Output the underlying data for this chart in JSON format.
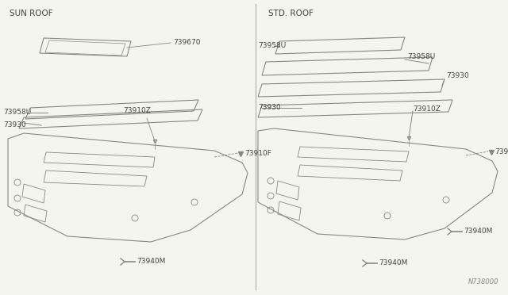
{
  "background_color": "#f5f5f0",
  "line_color": "#888880",
  "text_color": "#444440",
  "fig_width": 6.4,
  "fig_height": 3.72,
  "dpi": 100,
  "sections": [
    "SUN ROOF",
    "STD. ROOF"
  ],
  "footer_text": "N738000"
}
